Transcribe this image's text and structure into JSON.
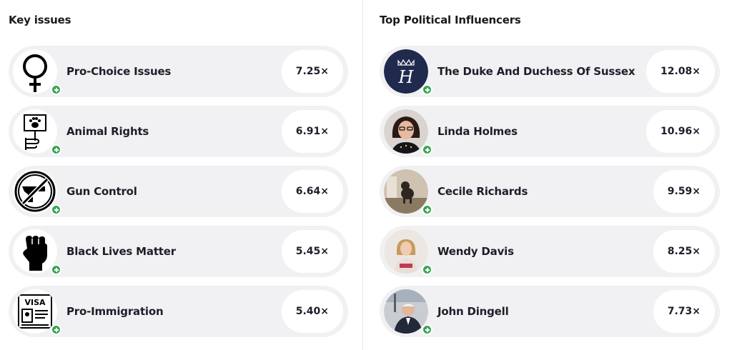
{
  "key_issues": {
    "title": "Key issues",
    "items": [
      {
        "label": "Pro-Choice Issues",
        "score": "7.25×",
        "icon": "female-symbol-icon"
      },
      {
        "label": "Animal Rights",
        "score": "6.91×",
        "icon": "paw-sign-icon"
      },
      {
        "label": "Gun Control",
        "score": "6.64×",
        "icon": "no-gun-icon"
      },
      {
        "label": "Black Lives Matter",
        "score": "5.45×",
        "icon": "raised-fist-icon"
      },
      {
        "label": "Pro-Immigration",
        "score": "5.40×",
        "icon": "visa-icon",
        "icon_text": "VISA"
      }
    ]
  },
  "influencers": {
    "title": "Top Political Influencers",
    "items": [
      {
        "name": "The Duke And Duchess Of Sussex",
        "score": "12.08×",
        "monogram": "H"
      },
      {
        "name": "Linda Holmes",
        "score": "10.96×"
      },
      {
        "name": "Cecile Richards",
        "score": "9.59×"
      },
      {
        "name": "Wendy Davis",
        "score": "8.25×"
      },
      {
        "name": "John Dingell",
        "score": "7.73×"
      }
    ]
  },
  "colors": {
    "row_bg": "#f1f1f3",
    "plus_badge": "#3aa655",
    "sussex_navy": "#1f2a4d"
  }
}
